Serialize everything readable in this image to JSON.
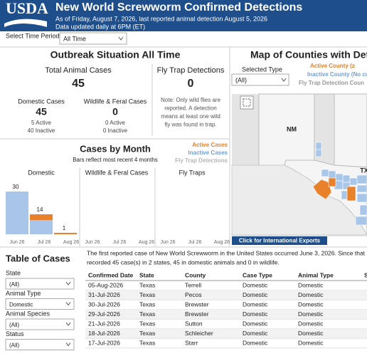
{
  "header": {
    "logo": "USDA",
    "title": "New World Screwworm Confirmed Detections",
    "subtitle": [
      "As of Friday, August 7, 2026, last reported animal detection August 5, 2026",
      "Data updated daily at 6PM (ET)"
    ]
  },
  "time_filter": {
    "label": "Select Time Period",
    "value": "All Time"
  },
  "outbreak": {
    "title": "Outbreak Situation All Time",
    "total_label": "Total Animal Cases",
    "total": "45",
    "domestic_label": "Domestic Cases",
    "domestic": "45",
    "domestic_active": "5 Active",
    "domestic_inactive": "40 Inactive",
    "wildlife_label": "Wildlife & Feral Cases",
    "wildlife": "0",
    "wildlife_active": "0 Active",
    "wildlife_inactive": "0 Inactive",
    "fly_trap_label": "Fly Trap Detections",
    "fly_trap": "0",
    "note": [
      "Note: Only wild flies are",
      "reported. A detection",
      "means at least one wild",
      "fly was found in trap."
    ]
  },
  "cases_by_month": {
    "title": "Cases by Month",
    "subtitle": "Bars reflect most recent 4 months",
    "legend": [
      {
        "name": "Active Cases",
        "color": "#e8812b"
      },
      {
        "name": "Inactive Cases",
        "color": "#6f9fd8"
      },
      {
        "name": "Fly Trap Detections",
        "color": "#b5b5b5"
      }
    ],
    "panels": [
      "Domestic",
      "Wildlife & Feral Cases",
      "Fly Traps"
    ],
    "months": [
      "Jun 26",
      "Jul 26",
      "Aug 26"
    ],
    "domestic": {
      "active": [
        0,
        4,
        1
      ],
      "inactive": [
        30,
        10,
        0
      ],
      "totals": [
        30,
        14,
        1
      ]
    }
  },
  "map": {
    "title": "Map of Counties with Detections",
    "selected_type_label": "Selected Type",
    "selected_type_value": "(All)",
    "legend": [
      "Active County (≥",
      "Inactive County (No cu",
      "Fly Trap Detection Coun"
    ],
    "labels": [
      "NM",
      "TX"
    ],
    "button": "Click for International Exports"
  },
  "table": {
    "title": "Table of Cases",
    "intro": [
      "The first reported case of New World Screwworm in the United States occurred June 3, 2026. Since that",
      "recorded 45 case(s) in 2 states, 45 in domestic animals and 0 in wildlife."
    ],
    "filters": [
      {
        "label": "State",
        "value": "(All)"
      },
      {
        "label": "Animal Type",
        "value": "Domestic"
      },
      {
        "label": "Animal Species",
        "value": "(All)"
      },
      {
        "label": "Status",
        "value": "(All)"
      }
    ],
    "columns": [
      "Confirmed Date",
      "State",
      "County",
      "Case Type",
      "Animal Type",
      "S"
    ],
    "rows": [
      [
        "05-Aug-2026",
        "Texas",
        "Terrell",
        "Domestic",
        "Domestic"
      ],
      [
        "31-Jul-2026",
        "Texas",
        "Pecos",
        "Domestic",
        "Domestic"
      ],
      [
        "30-Jul-2026",
        "Texas",
        "Brewster",
        "Domestic",
        "Domestic"
      ],
      [
        "29-Jul-2026",
        "Texas",
        "Brewster",
        "Domestic",
        "Domestic"
      ],
      [
        "21-Jul-2026",
        "Texas",
        "Sutton",
        "Domestic",
        "Domestic"
      ],
      [
        "18-Jul-2026",
        "Texas",
        "Schleicher",
        "Domestic",
        "Domestic"
      ],
      [
        "17-Jul-2026",
        "Texas",
        "Starr",
        "Domestic",
        "Domestic"
      ]
    ]
  }
}
